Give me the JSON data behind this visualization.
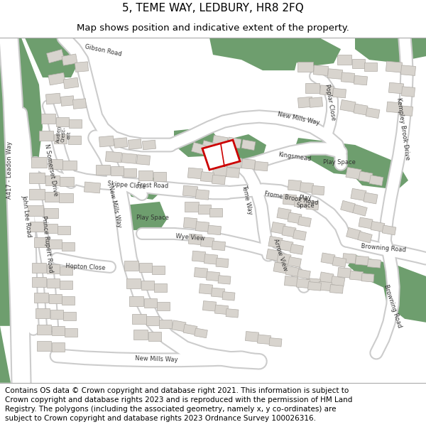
{
  "title_line1": "5, TEME WAY, LEDBURY, HR8 2FQ",
  "title_line2": "Map shows position and indicative extent of the property.",
  "footer_text": "Contains OS data © Crown copyright and database right 2021. This information is subject to Crown copyright and database rights 2023 and is reproduced with the permission of HM Land Registry. The polygons (including the associated geometry, namely x, y co-ordinates) are subject to Crown copyright and database rights 2023 Ordnance Survey 100026316.",
  "map_bg": "#f2efea",
  "road_color": "#ffffff",
  "road_edge": "#cccccc",
  "green_color": "#6e9e6e",
  "building_color": "#d8d4ce",
  "building_edge": "#b0aca6",
  "highlight_color": "#cc0000",
  "title_fontsize": 11,
  "subtitle_fontsize": 9.5,
  "footer_fontsize": 7.5,
  "fig_width": 6.0,
  "fig_height": 6.25,
  "dpi": 100
}
